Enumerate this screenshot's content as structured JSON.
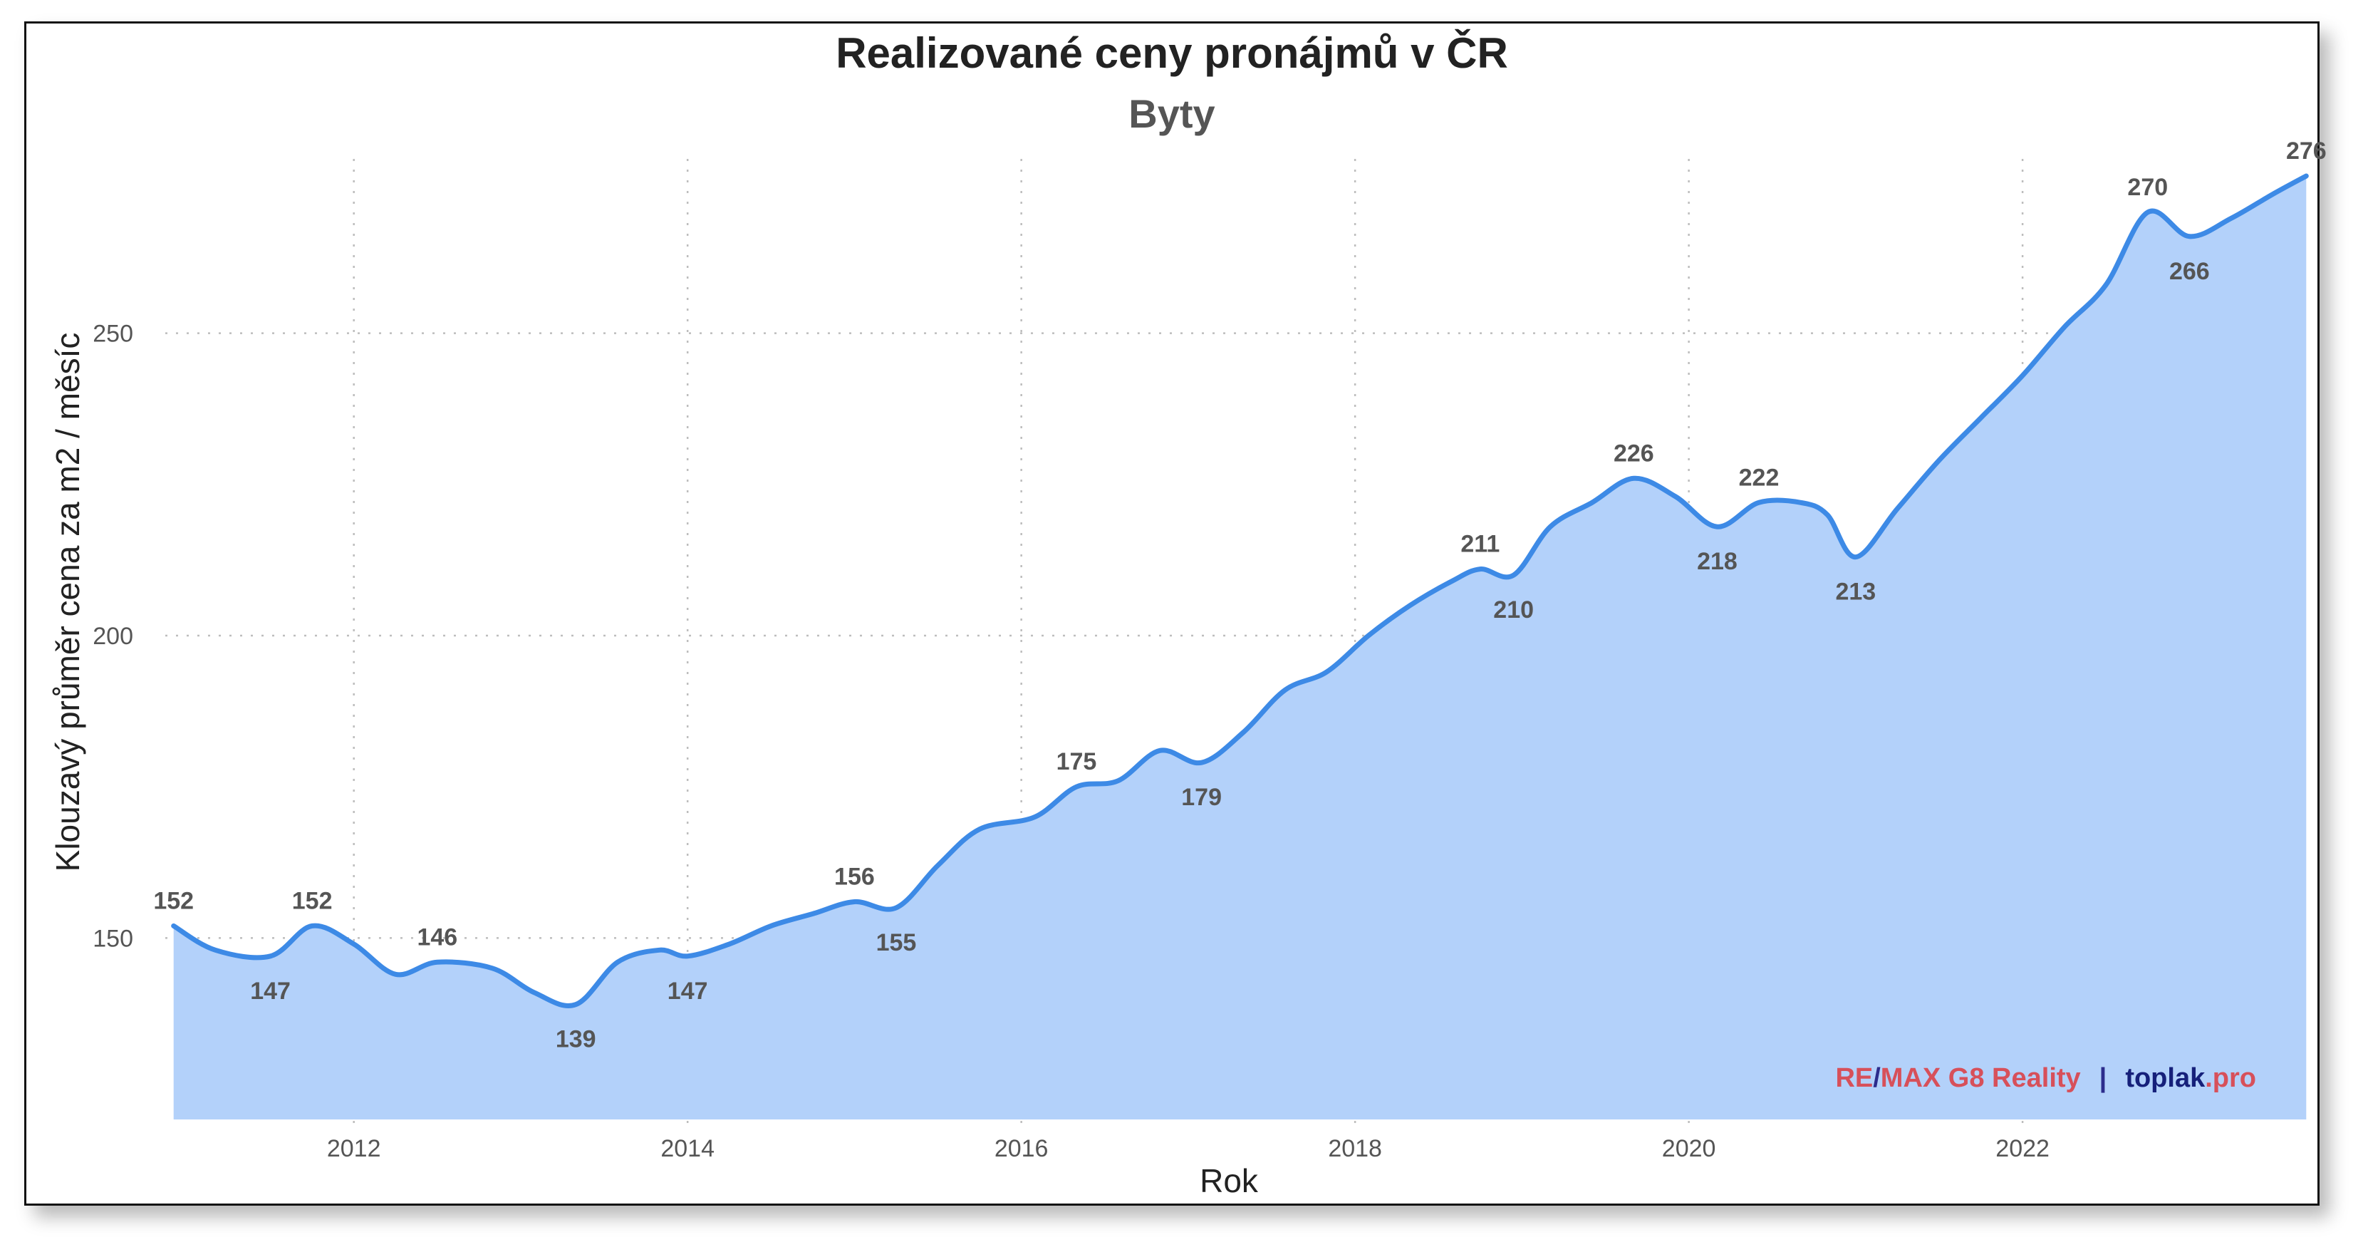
{
  "chart_data": {
    "type": "area",
    "title": "Realizované ceny pronájmů v ČR",
    "subtitle": "Byty",
    "xlabel": "Rok",
    "ylabel": "Klouzavý průměr cena za m2 / měsíc",
    "xlim": [
      2010.87,
      2023.72
    ],
    "ylim": [
      120,
      280
    ],
    "x_ticks": [
      2012,
      2014,
      2016,
      2018,
      2020,
      2022
    ],
    "y_ticks": [
      150,
      200,
      250
    ],
    "grid": true,
    "colors": {
      "line": "#3d8ae6",
      "fill": "#b3d1fa"
    },
    "x": [
      2010.92,
      2011.17,
      2011.5,
      2011.75,
      2012.0,
      2012.25,
      2012.5,
      2012.83,
      2013.08,
      2013.33,
      2013.58,
      2013.83,
      2014.0,
      2014.25,
      2014.5,
      2014.75,
      2015.0,
      2015.25,
      2015.5,
      2015.75,
      2016.08,
      2016.33,
      2016.58,
      2016.83,
      2017.08,
      2017.33,
      2017.58,
      2017.83,
      2018.08,
      2018.33,
      2018.58,
      2018.75,
      2018.95,
      2019.17,
      2019.42,
      2019.67,
      2019.92,
      2020.17,
      2020.42,
      2020.67,
      2020.83,
      2021.0,
      2021.25,
      2021.5,
      2021.75,
      2022.0,
      2022.25,
      2022.5,
      2022.75,
      2023.0,
      2023.25,
      2023.5,
      2023.7
    ],
    "values": [
      152,
      148,
      147,
      152,
      149,
      144,
      146,
      145,
      141,
      139,
      146,
      148,
      147,
      149,
      152,
      154,
      156,
      155,
      162,
      168,
      170,
      175,
      176,
      181,
      179,
      184,
      191,
      194,
      200,
      205,
      209,
      211,
      210,
      218,
      222,
      226,
      223,
      218,
      222,
      222,
      220,
      213,
      221,
      229,
      236,
      243,
      251,
      258,
      270,
      266,
      269,
      273,
      276
    ],
    "data_labels": [
      {
        "x": 2010.92,
        "value": 152,
        "text": "152",
        "pos": "above"
      },
      {
        "x": 2011.5,
        "value": 147,
        "text": "147",
        "pos": "below"
      },
      {
        "x": 2011.75,
        "value": 152,
        "text": "152",
        "pos": "above"
      },
      {
        "x": 2012.5,
        "value": 146,
        "text": "146",
        "pos": "above"
      },
      {
        "x": 2013.33,
        "value": 139,
        "text": "139",
        "pos": "below"
      },
      {
        "x": 2014.0,
        "value": 147,
        "text": "147",
        "pos": "below"
      },
      {
        "x": 2015.0,
        "value": 156,
        "text": "156",
        "pos": "above"
      },
      {
        "x": 2015.25,
        "value": 155,
        "text": "155",
        "pos": "below"
      },
      {
        "x": 2016.33,
        "value": 175,
        "text": "175",
        "pos": "above"
      },
      {
        "x": 2017.08,
        "value": 179,
        "text": "179",
        "pos": "below"
      },
      {
        "x": 2018.75,
        "value": 211,
        "text": "211",
        "pos": "above"
      },
      {
        "x": 2018.95,
        "value": 210,
        "text": "210",
        "pos": "below"
      },
      {
        "x": 2019.67,
        "value": 226,
        "text": "226",
        "pos": "above"
      },
      {
        "x": 2020.17,
        "value": 218,
        "text": "218",
        "pos": "below"
      },
      {
        "x": 2020.42,
        "value": 222,
        "text": "222",
        "pos": "above"
      },
      {
        "x": 2021.0,
        "value": 213,
        "text": "213",
        "pos": "below"
      },
      {
        "x": 2022.75,
        "value": 270,
        "text": "270",
        "pos": "above"
      },
      {
        "x": 2023.0,
        "value": 266,
        "text": "266",
        "pos": "below"
      },
      {
        "x": 2023.7,
        "value": 276,
        "text": "276",
        "pos": "above"
      }
    ]
  },
  "branding": {
    "remax_part1": "RE",
    "remax_slash": "/",
    "remax_part2": "MAX G8 Reality",
    "separator": "|",
    "site_part1": "toplak",
    "site_part2": ".pro"
  }
}
